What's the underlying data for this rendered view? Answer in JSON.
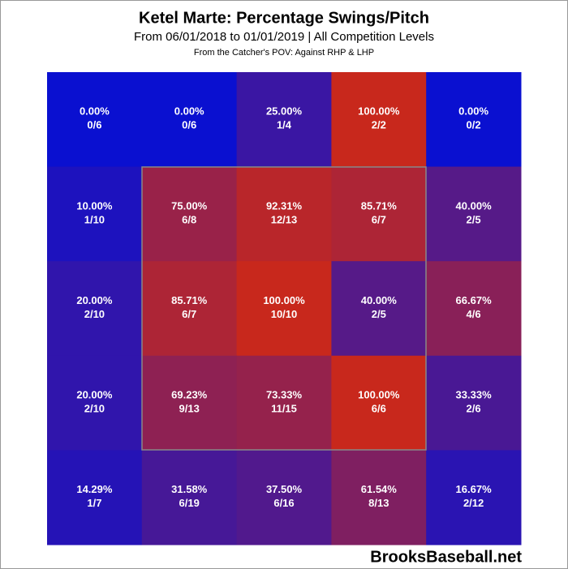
{
  "chart_data": {
    "type": "heatmap",
    "title": "Ketel Marte: Percentage Swings/Pitch",
    "subtitle": "From 06/01/2018 to 01/01/2019 | All Competition Levels",
    "note": "From the Catcher's POV:   Against RHP & LHP",
    "watermark": "BrooksBaseball.net",
    "colorscale": [
      "#0a10d0",
      "#c8281c"
    ],
    "vlim": [
      0,
      100
    ],
    "values": [
      [
        0,
        0,
        25,
        100,
        0
      ],
      [
        10,
        75,
        92.31,
        85.71,
        40
      ],
      [
        20,
        85.71,
        100,
        40,
        66.67
      ],
      [
        20,
        69.23,
        73.33,
        100,
        33.33
      ],
      [
        14.29,
        31.58,
        37.5,
        61.54,
        16.67
      ]
    ],
    "value_labels": [
      [
        "0.00%",
        "0.00%",
        "25.00%",
        "100.00%",
        "0.00%"
      ],
      [
        "10.00%",
        "75.00%",
        "92.31%",
        "85.71%",
        "40.00%"
      ],
      [
        "20.00%",
        "85.71%",
        "100.00%",
        "40.00%",
        "66.67%"
      ],
      [
        "20.00%",
        "69.23%",
        "73.33%",
        "100.00%",
        "33.33%"
      ],
      [
        "14.29%",
        "31.58%",
        "37.50%",
        "61.54%",
        "16.67%"
      ]
    ],
    "counts": [
      [
        "0/6",
        "0/6",
        "1/4",
        "2/2",
        "0/2"
      ],
      [
        "1/10",
        "6/8",
        "12/13",
        "6/7",
        "2/5"
      ],
      [
        "2/10",
        "6/7",
        "10/10",
        "2/5",
        "4/6"
      ],
      [
        "2/10",
        "9/13",
        "11/15",
        "6/6",
        "2/6"
      ],
      [
        "1/7",
        "6/19",
        "6/16",
        "8/13",
        "2/12"
      ]
    ]
  }
}
